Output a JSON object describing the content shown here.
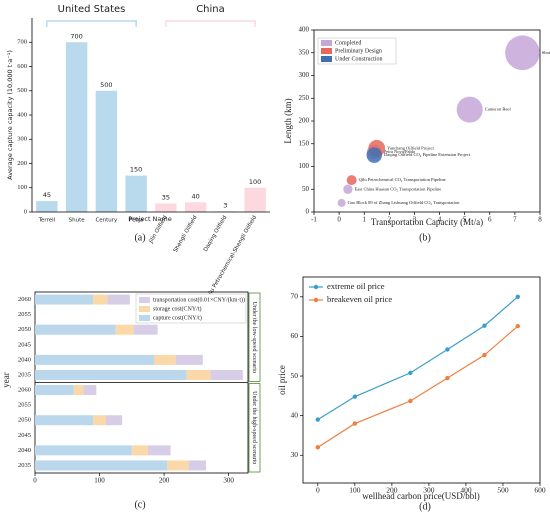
{
  "chart_data": [
    {
      "type": "bar",
      "panel_label": "(a)",
      "ylabel": "Average capture capacity (10,000 t·a⁻¹)",
      "xlabel": "Project Name",
      "groups": [
        {
          "name": "United States",
          "color": "#b9d9ec",
          "categories": [
            "Terrell",
            "Shute",
            "Century",
            "Petra"
          ],
          "values": [
            45,
            700,
            500,
            150
          ]
        },
        {
          "name": "China",
          "color": "#fbd9de",
          "categories": [
            "Jilin Oilfield",
            "Shengli Oilfield",
            "Daqing Oilfield",
            "Qilu Petrochemical-Shengli Oilfield"
          ],
          "values": [
            35,
            40,
            3,
            100
          ]
        }
      ],
      "ylim": [
        0,
        800
      ],
      "yticks": [
        0,
        100,
        200,
        300,
        400,
        500,
        600,
        700
      ]
    },
    {
      "type": "bubble",
      "panel_label": "(b)",
      "xlabel": "Transportation Capacity (Mt/a)",
      "ylabel": "Length (km)",
      "xlim": [
        -1,
        8
      ],
      "xticks": [
        -1,
        0,
        1,
        2,
        3,
        4,
        5,
        6,
        7,
        8
      ],
      "ylim": [
        0,
        400
      ],
      "yticks": [
        0,
        50,
        100,
        150,
        200,
        250,
        300,
        350,
        400
      ],
      "legend": "upper left",
      "series": [
        {
          "name": "Completed",
          "color": "#c6a6d8",
          "labels": [
            "Shute",
            "Cameron Reef",
            "Petra Nova/Pablo",
            "East China Huasun CO₂ Transportation Pipeline",
            "Gao Block 89 of Zhang Lishuang Oilfield CO₂ Transportation"
          ],
          "x": [
            7.3,
            5.2,
            1.4,
            0.35,
            0.1
          ],
          "values": [
            350,
            225,
            132,
            50,
            20
          ],
          "sizes": [
            300,
            170,
            55,
            22,
            16
          ]
        },
        {
          "name": "Preliminary Design",
          "color": "#e8675c",
          "labels": [
            "Yanchang Oilfield Project",
            "Qilu Petrochemical CO₂ Transportation Pipeline"
          ],
          "x": [
            1.5,
            0.5
          ],
          "values": [
            140,
            70
          ],
          "sizes": [
            70,
            25
          ]
        },
        {
          "name": "Under Construction",
          "color": "#3f6fb3",
          "labels": [
            "Daqing Oilfield CO₂ Pipeline Extension Project"
          ],
          "x": [
            1.4
          ],
          "values": [
            125
          ],
          "sizes": [
            60
          ]
        }
      ]
    },
    {
      "type": "hbar-stacked",
      "panel_label": "(c)",
      "ylabel": "year",
      "xlim": [
        0,
        330
      ],
      "xticks": [
        0,
        100,
        200,
        300
      ],
      "scenarios": [
        {
          "label": "Under the low-speed scenario",
          "categories": [
            "2060",
            "2055",
            "2050",
            "2045",
            "2040",
            "2035"
          ]
        },
        {
          "label": "Under the high-speed scenario",
          "categories": [
            "2060",
            "2055",
            "2050",
            "2045",
            "2040",
            "2035"
          ]
        }
      ],
      "series": [
        {
          "name": "capture cost(CNY/t)",
          "color": "#bad7ec",
          "values": [
            90,
            null,
            125,
            null,
            185,
            235,
            60,
            null,
            90,
            null,
            150,
            205
          ]
        },
        {
          "name": "storage cost(CNY/t)",
          "color": "#fbd8a8",
          "values": [
            22,
            null,
            28,
            null,
            33,
            37,
            15,
            null,
            20,
            null,
            25,
            33
          ]
        },
        {
          "name": "transportation cost(0.01×CNY/(km·t))",
          "color": "#d8cde6",
          "values": [
            35,
            null,
            37,
            null,
            42,
            50,
            20,
            null,
            25,
            null,
            35,
            27
          ]
        }
      ]
    },
    {
      "type": "line",
      "panel_label": "(d)",
      "xlabel": "wellhead carbon price(USD/bbl)",
      "ylabel": "oil price",
      "x": [
        0,
        100,
        250,
        350,
        450,
        540
      ],
      "xlim": [
        -40,
        600
      ],
      "xticks": [
        0,
        100,
        200,
        300,
        400,
        500,
        600
      ],
      "ylim": [
        23,
        75
      ],
      "yticks": [
        30,
        40,
        50,
        60,
        70
      ],
      "legend": "upper left",
      "series": [
        {
          "name": "extreme oil price",
          "color": "#3a9fc8",
          "values": [
            39,
            44.8,
            50.8,
            56.7,
            62.7,
            70
          ]
        },
        {
          "name": "breakeven oil price",
          "color": "#f07f3c",
          "values": [
            32,
            38,
            43.7,
            49.5,
            55.3,
            62.6
          ]
        }
      ]
    }
  ]
}
